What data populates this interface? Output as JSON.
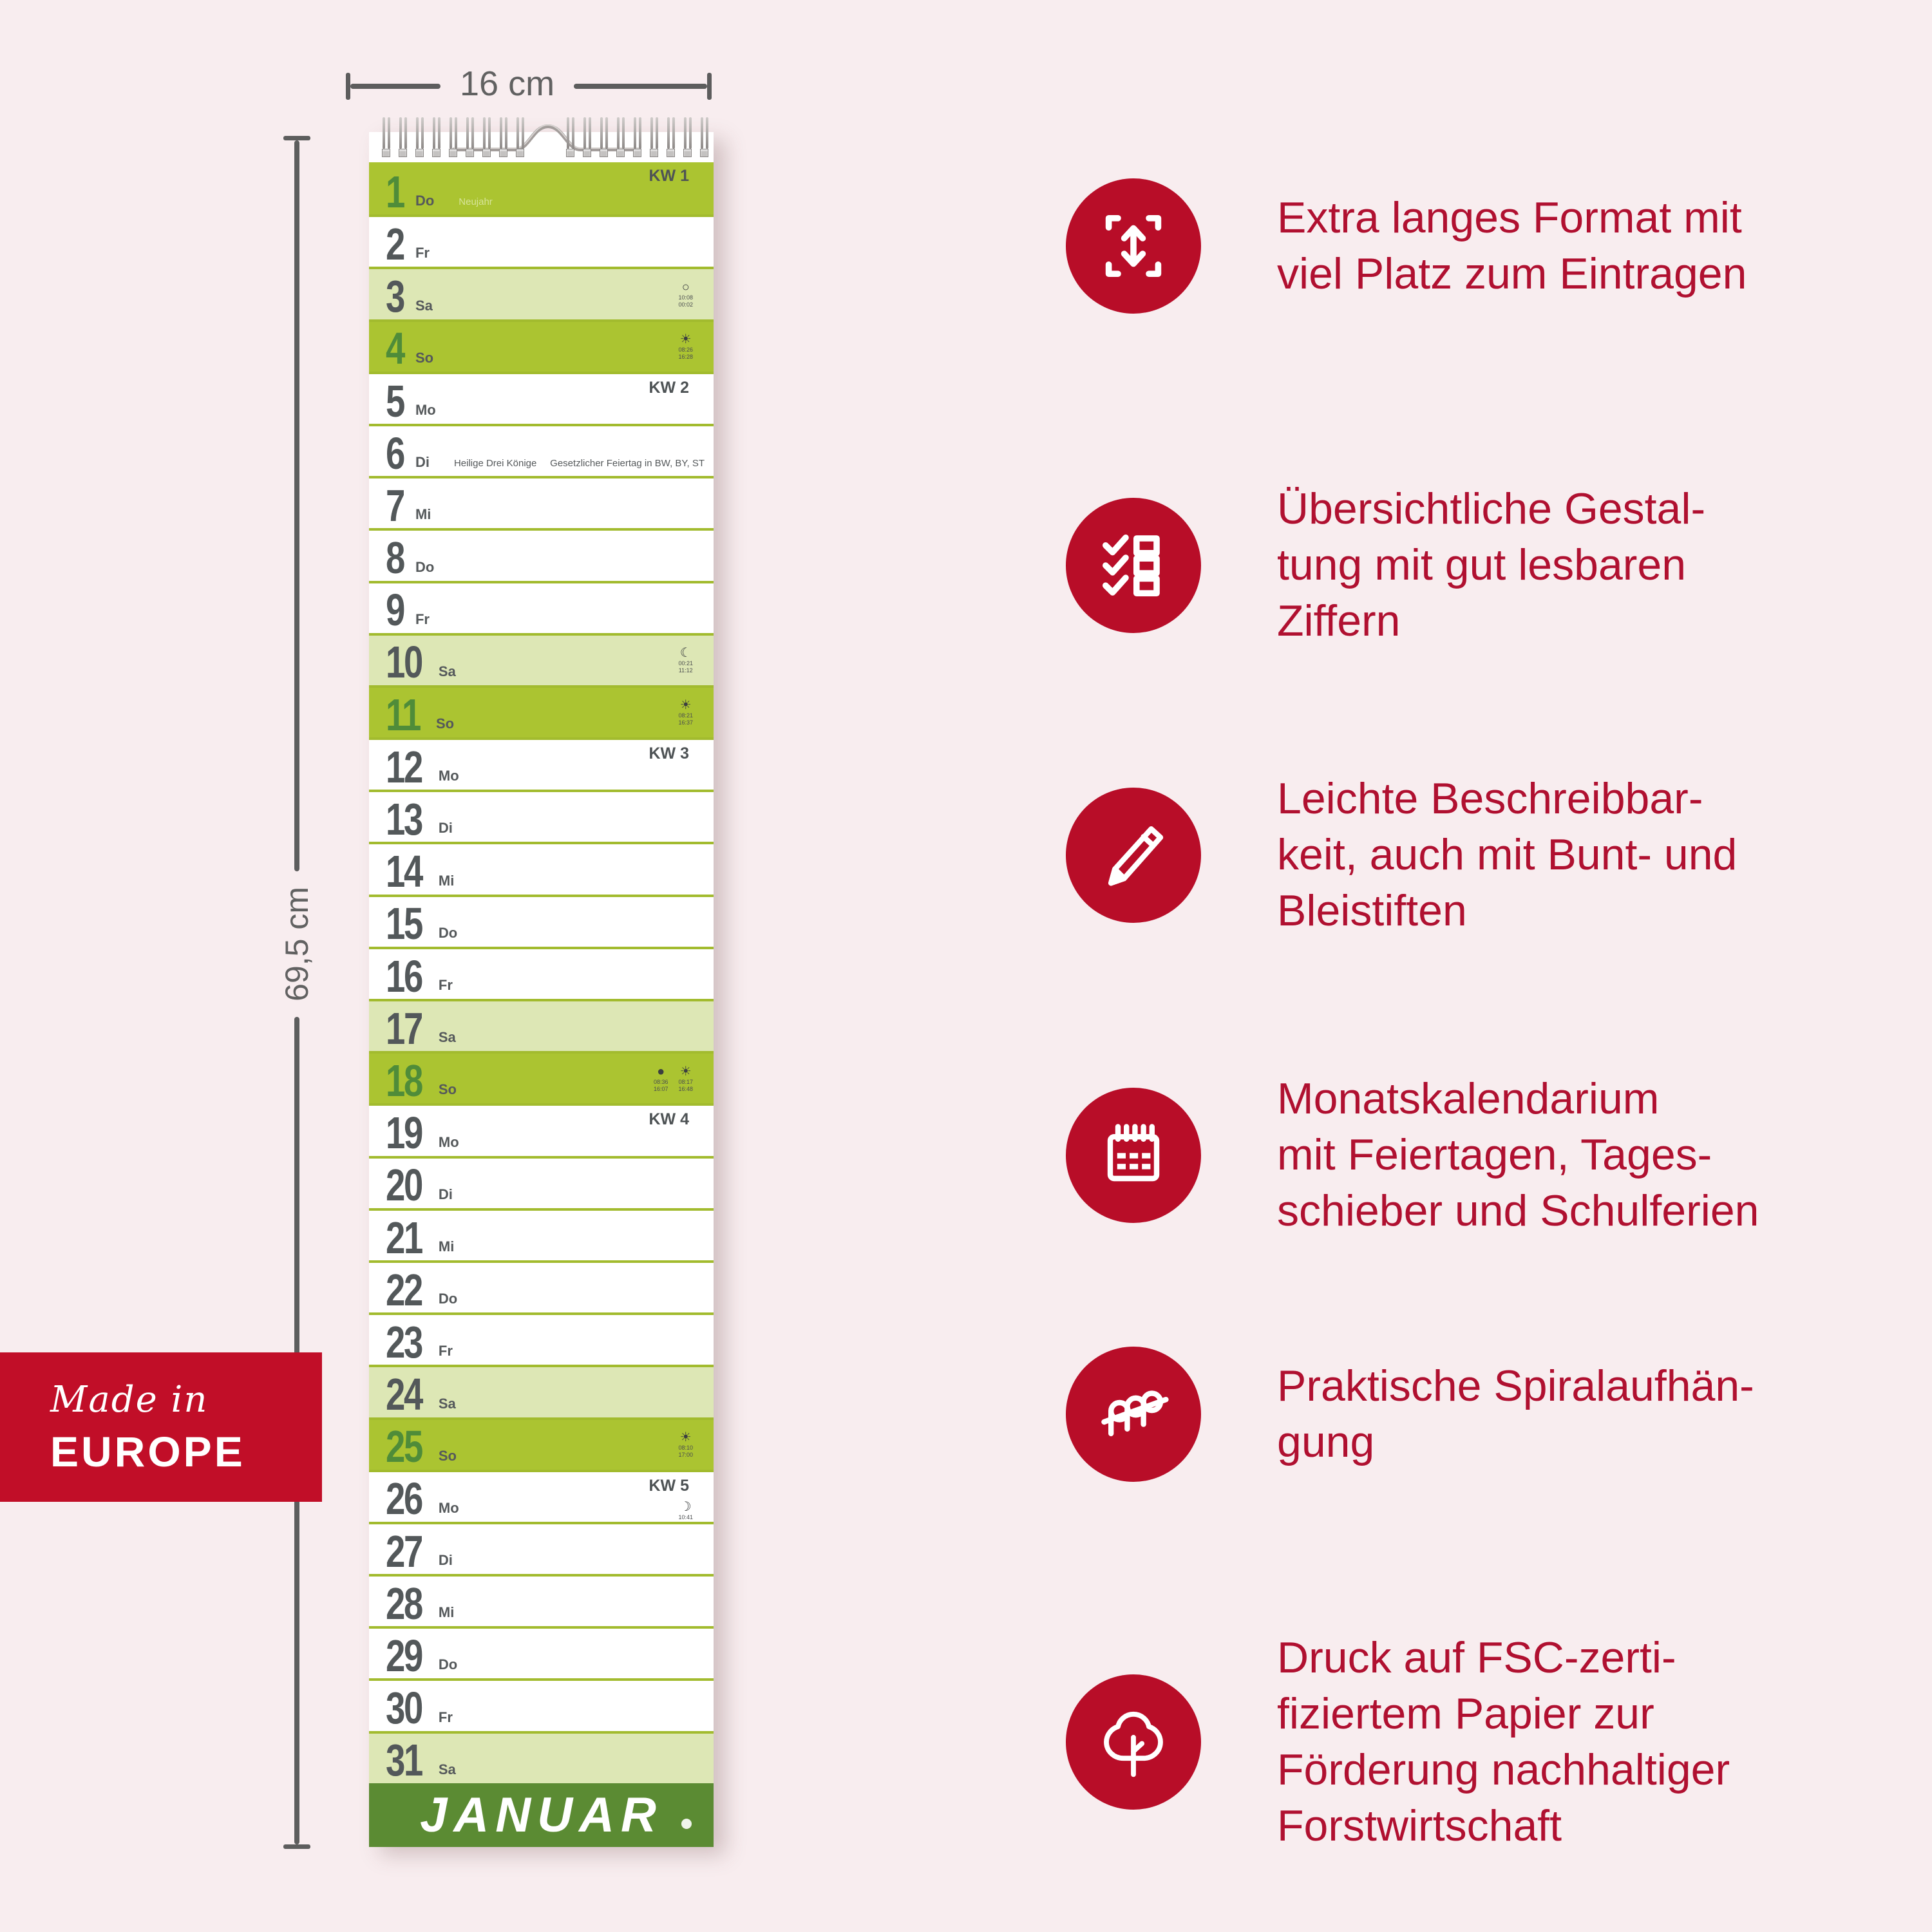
{
  "colors": {
    "background_pink": "#f8edef",
    "accent_red_circle": "#b80d28",
    "badge_red": "#c10e28",
    "feature_text_red": "#b01030",
    "green_sunday_row": "#abc431",
    "green_saturday_row": "#dde7b5",
    "green_separator": "#a2bb2e",
    "green_day_number": "#4f8c39",
    "green_month_bar": "#5b8b33",
    "number_gray": "#53585a",
    "dimension_gray": "#5d5d5d"
  },
  "dimensions": {
    "width_label": "16 cm",
    "height_label": "69,5 cm"
  },
  "badge": {
    "line1": "Made in",
    "line2": "EUROPE"
  },
  "calendar": {
    "month": "JANUAR",
    "rows": [
      {
        "d": "1",
        "wd": "Do",
        "bg": "sun",
        "kw": "KW 1",
        "note": "Neujahr",
        "note_light": true
      },
      {
        "d": "2",
        "wd": "Fr",
        "bg": "white"
      },
      {
        "d": "3",
        "wd": "Sa",
        "bg": "sat",
        "astro": [
          {
            "g": "○",
            "icon": "full-moon-icon",
            "t": [
              "10:08",
              "00:02"
            ]
          }
        ]
      },
      {
        "d": "4",
        "wd": "So",
        "bg": "sun",
        "astro": [
          {
            "g": "☀",
            "icon": "sun-icon",
            "t": [
              "08:26",
              "16:28"
            ]
          }
        ]
      },
      {
        "d": "5",
        "wd": "Mo",
        "bg": "white",
        "kw": "KW 2"
      },
      {
        "d": "6",
        "wd": "Di",
        "bg": "white",
        "note": "Heilige Drei Könige     Gesetzlicher Feiertag in BW, BY, ST"
      },
      {
        "d": "7",
        "wd": "Mi",
        "bg": "white"
      },
      {
        "d": "8",
        "wd": "Do",
        "bg": "white"
      },
      {
        "d": "9",
        "wd": "Fr",
        "bg": "white"
      },
      {
        "d": "10",
        "wd": "Sa",
        "bg": "sat",
        "astro": [
          {
            "g": "☾",
            "icon": "moon-icon",
            "t": [
              "00:21",
              "11:12"
            ]
          }
        ]
      },
      {
        "d": "11",
        "wd": "So",
        "bg": "sun",
        "astro": [
          {
            "g": "☀",
            "icon": "sun-icon",
            "t": [
              "08:21",
              "16:37"
            ]
          }
        ]
      },
      {
        "d": "12",
        "wd": "Mo",
        "bg": "white",
        "kw": "KW 3"
      },
      {
        "d": "13",
        "wd": "Di",
        "bg": "white"
      },
      {
        "d": "14",
        "wd": "Mi",
        "bg": "white"
      },
      {
        "d": "15",
        "wd": "Do",
        "bg": "white"
      },
      {
        "d": "16",
        "wd": "Fr",
        "bg": "white"
      },
      {
        "d": "17",
        "wd": "Sa",
        "bg": "sat"
      },
      {
        "d": "18",
        "wd": "So",
        "bg": "sun",
        "astro": [
          {
            "g": "●",
            "icon": "new-moon-icon",
            "t": [
              "08:36",
              "16:07"
            ]
          },
          {
            "g": "☀",
            "icon": "sun-icon",
            "t": [
              "08:17",
              "16:48"
            ]
          }
        ]
      },
      {
        "d": "19",
        "wd": "Mo",
        "bg": "white",
        "kw": "KW 4"
      },
      {
        "d": "20",
        "wd": "Di",
        "bg": "white"
      },
      {
        "d": "21",
        "wd": "Mi",
        "bg": "white"
      },
      {
        "d": "22",
        "wd": "Do",
        "bg": "white"
      },
      {
        "d": "23",
        "wd": "Fr",
        "bg": "white"
      },
      {
        "d": "24",
        "wd": "Sa",
        "bg": "sat"
      },
      {
        "d": "25",
        "wd": "So",
        "bg": "sun",
        "astro": [
          {
            "g": "☀",
            "icon": "sun-icon",
            "t": [
              "08:10",
              "17:00"
            ]
          }
        ]
      },
      {
        "d": "26",
        "wd": "Mo",
        "bg": "white",
        "kw": "KW 5",
        "astro": [
          {
            "g": "☽",
            "icon": "crescent-moon-icon",
            "t": [
              "10:41",
              "01:26"
            ]
          }
        ]
      },
      {
        "d": "27",
        "wd": "Di",
        "bg": "white"
      },
      {
        "d": "28",
        "wd": "Mi",
        "bg": "white"
      },
      {
        "d": "29",
        "wd": "Do",
        "bg": "white"
      },
      {
        "d": "30",
        "wd": "Fr",
        "bg": "white"
      },
      {
        "d": "31",
        "wd": "Sa",
        "bg": "sat"
      }
    ]
  },
  "features": [
    {
      "icon": "expand-vertical-icon",
      "lines": [
        "Extra langes Format mit",
        "viel Platz zum Eintragen"
      ]
    },
    {
      "icon": "checklist-icon",
      "lines": [
        "Übersichtliche Gestal-",
        "tung mit gut lesbaren",
        "Ziffern"
      ]
    },
    {
      "icon": "pencil-icon",
      "lines": [
        "Leichte Beschreibbar-",
        "keit, auch mit Bunt- und",
        "Bleistiften"
      ]
    },
    {
      "icon": "calendar-icon",
      "lines": [
        "Monatskalendarium",
        "mit Feiertagen, Tages-",
        "schieber und Schulferien"
      ]
    },
    {
      "icon": "spiral-icon",
      "lines": [
        "Praktische Spiralaufhän-",
        "gung"
      ]
    },
    {
      "icon": "tree-icon",
      "lines": [
        "Druck auf FSC-zerti-",
        "fiziertem Papier zur",
        "Förderung nachhaltiger",
        "Forstwirtschaft"
      ]
    }
  ]
}
